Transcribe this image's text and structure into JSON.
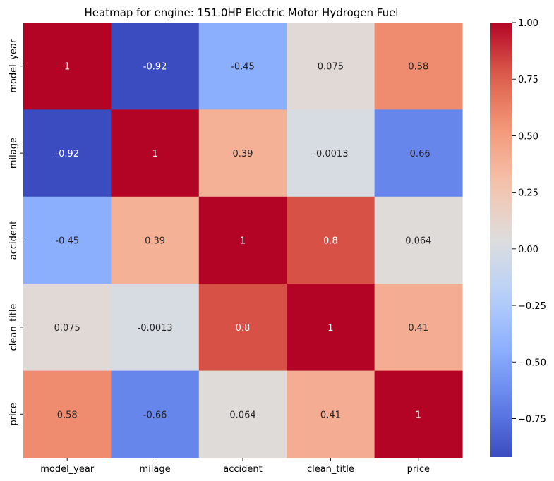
{
  "chart_data": {
    "type": "heatmap",
    "title": "Heatmap for engine: 151.0HP Electric Motor Hydrogen Fuel",
    "x_categories": [
      "model_year",
      "milage",
      "accident",
      "clean_title",
      "price"
    ],
    "y_categories": [
      "model_year",
      "milage",
      "accident",
      "clean_title",
      "price"
    ],
    "values": [
      [
        1,
        -0.92,
        -0.45,
        0.075,
        0.58
      ],
      [
        -0.92,
        1,
        0.39,
        -0.0013,
        -0.66
      ],
      [
        -0.45,
        0.39,
        1,
        0.8,
        0.064
      ],
      [
        0.075,
        -0.0013,
        0.8,
        1,
        0.41
      ],
      [
        0.58,
        -0.66,
        0.064,
        0.41,
        1
      ]
    ],
    "value_labels": [
      [
        "1",
        "-0.92",
        "-0.45",
        "0.075",
        "0.58"
      ],
      [
        "-0.92",
        "1",
        "0.39",
        "-0.0013",
        "-0.66"
      ],
      [
        "-0.45",
        "0.39",
        "1",
        "0.8",
        "0.064"
      ],
      [
        "0.075",
        "-0.0013",
        "0.8",
        "1",
        "0.41"
      ],
      [
        "0.58",
        "-0.66",
        "0.064",
        "0.41",
        "1"
      ]
    ],
    "colormap": "coolwarm",
    "vmin": -0.92,
    "vmax": 1.0,
    "colorbar_ticks": [
      1.0,
      0.75,
      0.5,
      0.25,
      0.0,
      -0.25,
      -0.5,
      -0.75
    ],
    "colorbar_tick_labels": [
      "1.00",
      "0.75",
      "0.50",
      "0.25",
      "0.00",
      "−0.25",
      "−0.50",
      "−0.75"
    ],
    "annotated": true
  }
}
